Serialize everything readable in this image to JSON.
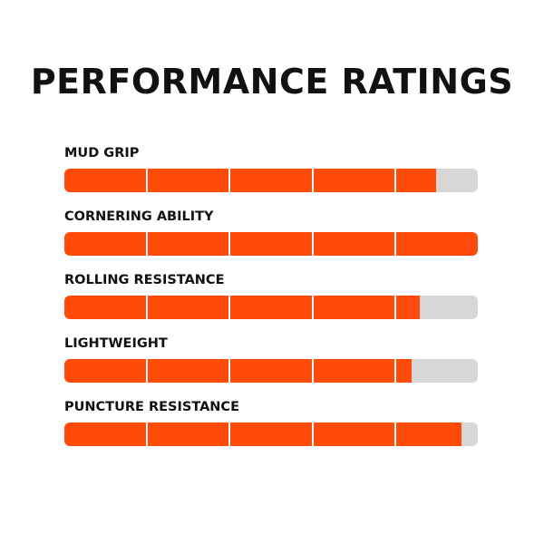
{
  "title": "PERFORMANCE RATINGS",
  "colors": {
    "fill": "#ff4a0a",
    "track": "#d9d6d8",
    "text": "#111111"
  },
  "segments_per_bar": 5,
  "ratings": [
    {
      "label": "MUD GRIP",
      "value": 0.9
    },
    {
      "label": "CORNERING ABILITY",
      "value": 1.0
    },
    {
      "label": "ROLLING RESISTANCE",
      "value": 0.86
    },
    {
      "label": "LIGHTWEIGHT",
      "value": 0.84
    },
    {
      "label": "PUNCTURE RESISTANCE",
      "value": 0.96
    }
  ]
}
